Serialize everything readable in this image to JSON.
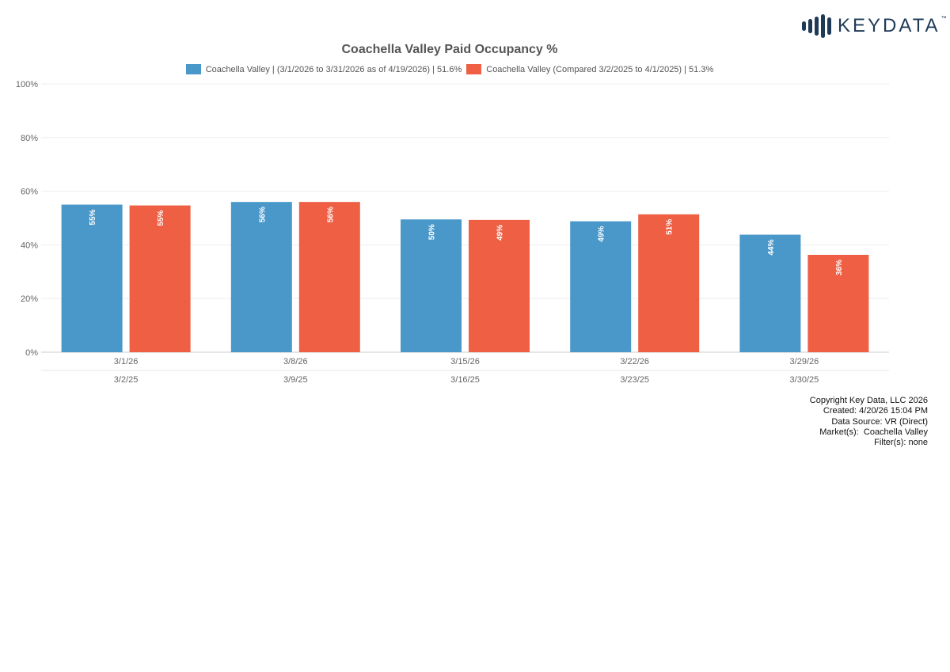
{
  "logo": {
    "text": "KEYDATA",
    "tm": "™",
    "color": "#1f3a57"
  },
  "chart_data": {
    "type": "bar",
    "title": "Coachella Valley Paid Occupancy %",
    "categories": [
      "3/1/26",
      "3/8/26",
      "3/15/26",
      "3/22/26",
      "3/29/26"
    ],
    "categories_secondary": [
      "3/2/25",
      "3/9/25",
      "3/16/25",
      "3/23/25",
      "3/30/25"
    ],
    "series": [
      {
        "name": "Coachella Valley | (3/1/2026 to 3/31/2026 as of 4/19/2026) | 51.6%",
        "color": "#4a98c9",
        "values": [
          55,
          56,
          49.5,
          48.8,
          43.8
        ],
        "labels": [
          "55%",
          "56%",
          "50%",
          "49%",
          "44%"
        ]
      },
      {
        "name": "Coachella Valley (Compared 3/2/2025 to 4/1/2025) | 51.3%",
        "color": "#ee5f44",
        "values": [
          54.7,
          56,
          49.3,
          51.4,
          36.3
        ],
        "labels": [
          "55%",
          "56%",
          "49%",
          "51%",
          "36%"
        ]
      }
    ],
    "yticks": [
      "0%",
      "20%",
      "40%",
      "60%",
      "80%",
      "100%"
    ],
    "ylim": [
      0,
      100
    ],
    "grid": true,
    "legend": "top-center"
  },
  "footer": {
    "copyright": "Copyright Key Data, LLC 2026",
    "created": "Created: 4/20/26 15:04 PM",
    "source": "Data Source: VR (Direct)",
    "markets": "Market(s):  Coachella Valley",
    "filters": "Filter(s): none"
  }
}
